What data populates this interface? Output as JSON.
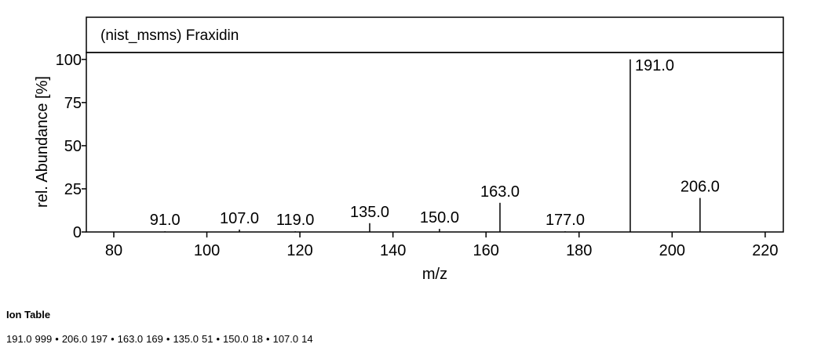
{
  "chart_data": {
    "type": "stem",
    "title": "(nist_msms) Fraxidin",
    "x_label": "m/z",
    "y_label": "rel. Abundance [%]",
    "x": [
      91,
      107,
      119,
      135,
      150,
      163,
      177,
      191,
      206
    ],
    "values": [
      0.4,
      1.4,
      0.4,
      5.1,
      1.8,
      16.9,
      0.4,
      100,
      19.7
    ],
    "peak_labels": [
      "91.0",
      "107.0",
      "119.0",
      "135.0",
      "150.0",
      "163.0",
      "177.0",
      "191.0",
      "206.0"
    ],
    "color": "#000000",
    "xlim": [
      74.1,
      223.9
    ],
    "xticks": [
      80,
      100,
      120,
      140,
      160,
      180,
      200,
      220
    ],
    "ylim": [
      0,
      104
    ],
    "yticks": [
      0,
      25,
      50,
      75,
      100
    ]
  },
  "ion_table": {
    "title": "Ion Table",
    "separator": "•",
    "entries": [
      {
        "mz": "191.0",
        "intensity": "999"
      },
      {
        "mz": "206.0",
        "intensity": "197"
      },
      {
        "mz": "163.0",
        "intensity": "169"
      },
      {
        "mz": "135.0",
        "intensity": "51"
      },
      {
        "mz": "150.0",
        "intensity": "18"
      },
      {
        "mz": "107.0",
        "intensity": "14"
      }
    ]
  }
}
